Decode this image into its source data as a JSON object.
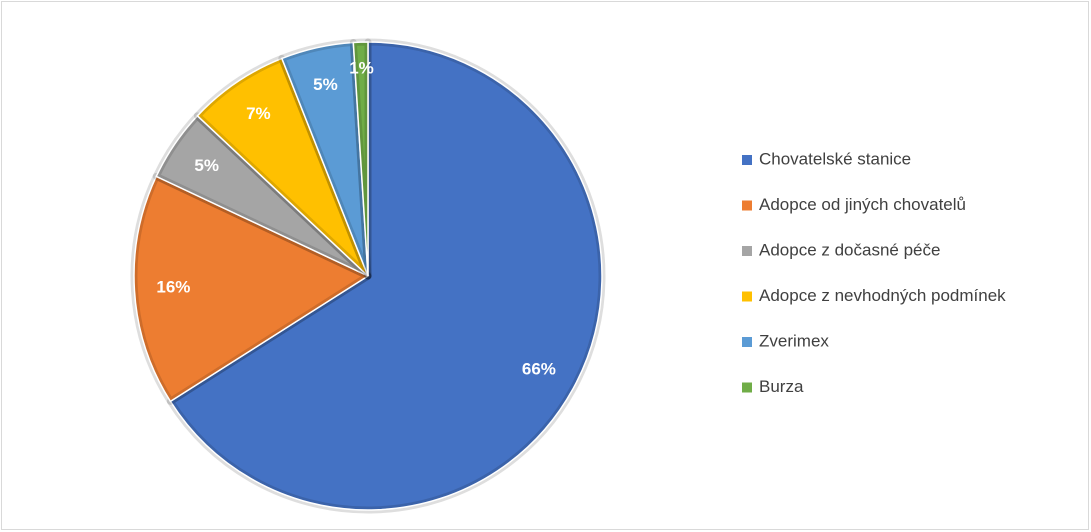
{
  "chart_data": {
    "type": "pie",
    "categories": [
      "Chovatelské stanice",
      "Adopce od jiných chovatelů",
      "Adopce z dočasné péče",
      "Adopce z nevhodných podmínek",
      "Zverimex",
      "Burza"
    ],
    "values": [
      66,
      16,
      5,
      7,
      5,
      1
    ],
    "value_labels": [
      "66%",
      "16%",
      "5%",
      "7%",
      "5%",
      "1%"
    ],
    "colors": [
      "#4472c4",
      "#ed7d31",
      "#a5a5a5",
      "#ffc000",
      "#5b9bd5",
      "#70ad47"
    ],
    "legend": "right"
  }
}
